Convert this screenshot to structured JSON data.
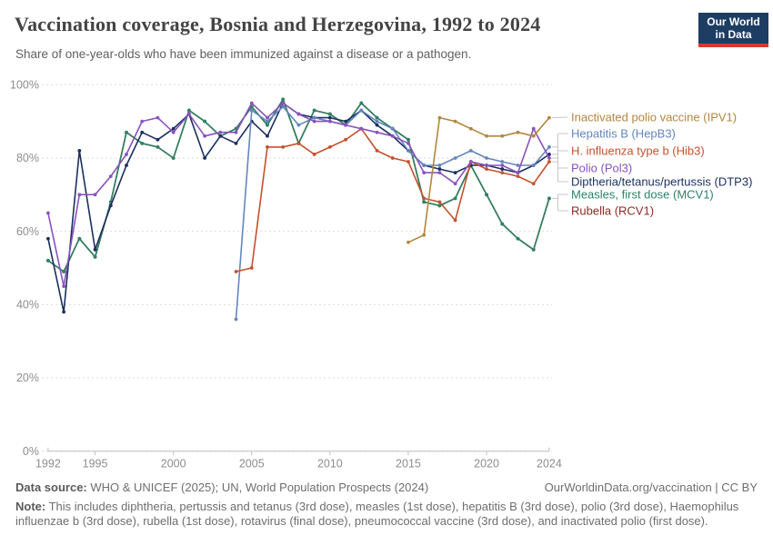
{
  "header": {
    "title": "Vaccination coverage, Bosnia and Herzegovina, 1992 to 2024",
    "subtitle": "Share of one-year-olds who have been immunized against a disease or a pathogen.",
    "logo": {
      "line1": "Our World",
      "line2": "in Data",
      "bg_color": "#1d3d63",
      "bar_color": "#d43a2f"
    }
  },
  "chart_data": {
    "type": "line",
    "x": [
      1992,
      1993,
      1994,
      1995,
      1996,
      1997,
      1998,
      1999,
      2000,
      2001,
      2002,
      2003,
      2004,
      2005,
      2006,
      2007,
      2008,
      2009,
      2010,
      2011,
      2012,
      2013,
      2014,
      2015,
      2016,
      2017,
      2018,
      2019,
      2020,
      2021,
      2022,
      2023,
      2024
    ],
    "xticks": [
      1992,
      1995,
      2000,
      2005,
      2010,
      2015,
      2020,
      2024
    ],
    "yticks": [
      {
        "label": "0%",
        "value": 0
      },
      {
        "label": "20%",
        "value": 20
      },
      {
        "label": "40%",
        "value": 40
      },
      {
        "label": "60%",
        "value": 60
      },
      {
        "label": "80%",
        "value": 80
      },
      {
        "label": "100%",
        "value": 100
      }
    ],
    "ylim": [
      0,
      100
    ],
    "grid": "dashed horizontal",
    "legend_position": "right",
    "series": [
      {
        "id": "ipv1",
        "name": "Inactivated polio vaccine (IPV1)",
        "color": "#b3863e",
        "values": [
          null,
          null,
          null,
          null,
          null,
          null,
          null,
          null,
          null,
          null,
          null,
          null,
          null,
          null,
          null,
          null,
          null,
          null,
          null,
          null,
          null,
          null,
          null,
          57,
          59,
          91,
          90,
          88,
          86,
          86,
          87,
          86,
          91
        ]
      },
      {
        "id": "hepb3",
        "name": "Hepatitis B (HepB3)",
        "color": "#6486bd",
        "values": [
          null,
          null,
          null,
          null,
          null,
          null,
          null,
          null,
          null,
          null,
          null,
          null,
          36,
          93,
          90,
          94,
          89,
          91,
          90,
          89,
          93,
          90,
          88,
          82,
          78,
          78,
          80,
          82,
          80,
          79,
          78,
          78,
          83
        ]
      },
      {
        "id": "hib3",
        "name": "H. influenza type b (Hib3)",
        "color": "#c4512c",
        "values": [
          null,
          null,
          null,
          null,
          null,
          null,
          null,
          null,
          null,
          null,
          null,
          null,
          49,
          50,
          83,
          83,
          84,
          81,
          83,
          85,
          88,
          82,
          80,
          79,
          69,
          68,
          63,
          79,
          77,
          76,
          75,
          73,
          79
        ]
      },
      {
        "id": "pol3",
        "name": "Polio (Pol3)",
        "color": "#8952bd",
        "values": [
          65,
          45,
          70,
          70,
          75,
          81,
          90,
          91,
          87,
          92,
          86,
          87,
          87,
          95,
          91,
          95,
          92,
          90,
          90,
          89,
          88,
          87,
          86,
          84,
          76,
          76,
          73,
          79,
          78,
          78,
          76,
          88,
          80
        ]
      },
      {
        "id": "dtp3",
        "name": "Diptheria/tetanus/pertussis (DTP3)",
        "color": "#1b2f5e",
        "values": [
          58,
          38,
          82,
          55,
          67,
          78,
          87,
          85,
          88,
          92,
          80,
          86,
          84,
          90,
          86,
          95,
          92,
          91,
          91,
          90,
          93,
          89,
          86,
          82,
          78,
          77,
          76,
          78,
          78,
          77,
          76,
          78,
          81
        ]
      },
      {
        "id": "mcv1",
        "name": "Measles, first dose (MCV1)",
        "color": "#2c8465",
        "values": [
          52,
          49,
          58,
          53,
          68,
          87,
          84,
          83,
          80,
          93,
          90,
          86,
          88,
          94,
          89,
          96,
          84,
          93,
          92,
          89,
          95,
          91,
          88,
          85,
          68,
          67,
          69,
          78,
          70,
          62,
          58,
          55,
          69
        ]
      },
      {
        "id": "rcv1",
        "name": "Rubella (RCV1)",
        "color": "#8f2a25",
        "values": [
          52,
          49,
          58,
          53,
          68,
          87,
          84,
          83,
          80,
          93,
          90,
          86,
          88,
          94,
          89,
          96,
          84,
          93,
          92,
          89,
          95,
          91,
          88,
          85,
          68,
          67,
          69,
          78,
          70,
          62,
          58,
          55,
          69
        ]
      }
    ]
  },
  "footer": {
    "source_label": "Data source:",
    "source_text": " WHO & UNICEF (2025); UN, World Population Prospects (2024)",
    "link": "OurWorldinData.org/vaccination | CC BY",
    "note_label": "Note:",
    "note_text": " This includes diphtheria, pertussis and tetanus (3rd dose), measles (1st dose), hepatitis B (3rd dose), polio (3rd dose), Haemophilus influenzae b (3rd dose), rubella (1st dose), rotavirus (final dose), pneumococcal vaccine (3rd dose), and inactivated polio (first dose)."
  }
}
